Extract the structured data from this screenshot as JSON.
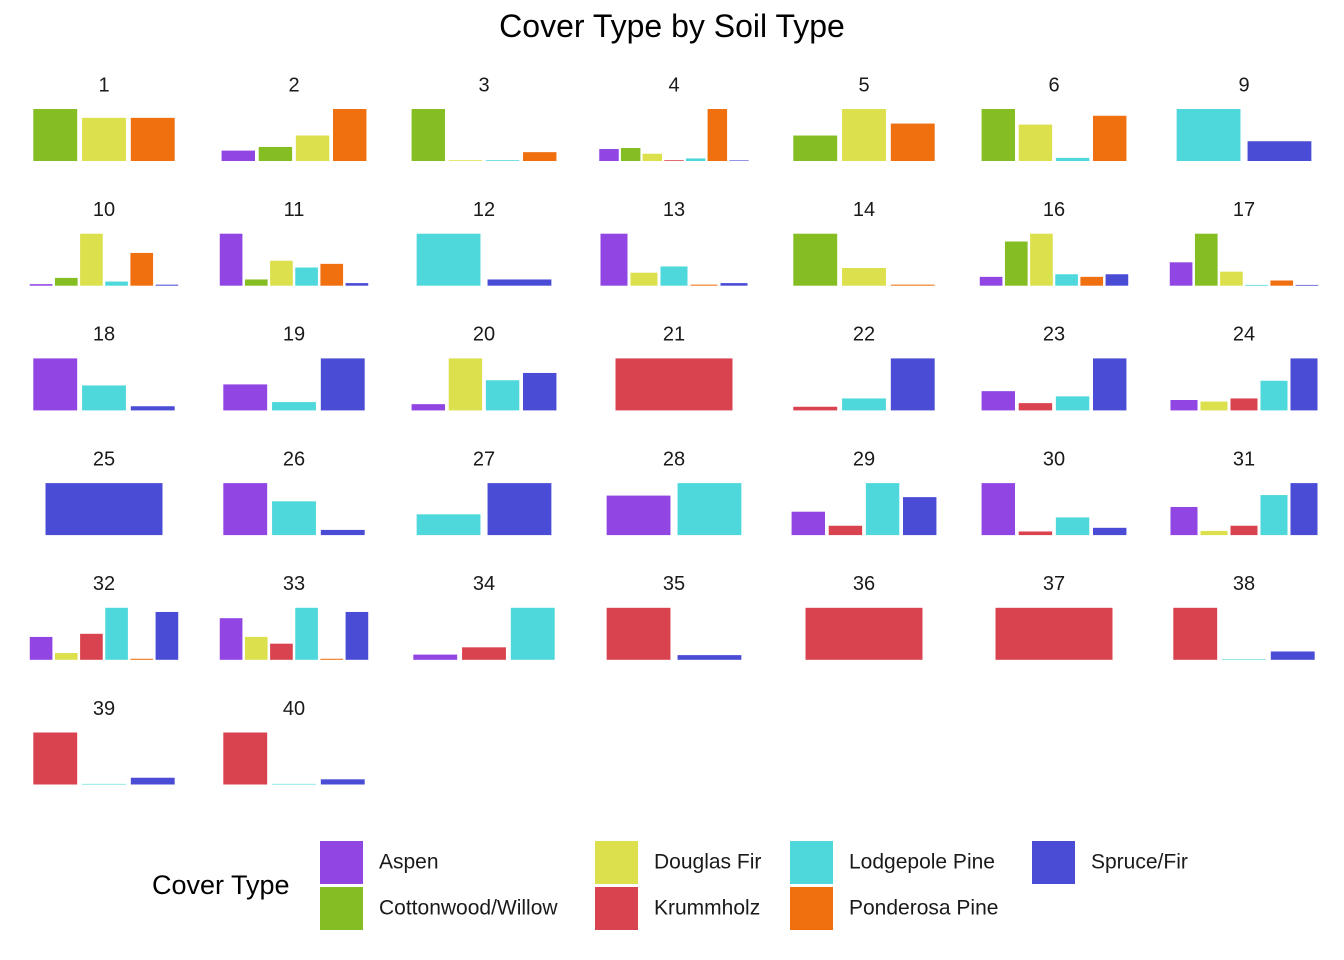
{
  "chart_data": {
    "type": "bar",
    "title": "Cover Type by Soil Type",
    "xlabel": "",
    "ylabel": "",
    "legend": {
      "title": "Cover Type",
      "placement": "bottom",
      "entries": [
        "Aspen",
        "Cottonwood/Willow",
        "Douglas Fir",
        "Krummholz",
        "Lodgepole Pine",
        "Ponderosa Pine",
        "Spruce/Fir"
      ]
    },
    "colors": {
      "Aspen": "#9146e3",
      "Cottonwood/Willow": "#84be23",
      "Douglas Fir": "#dce04c",
      "Krummholz": "#d9434f",
      "Lodgepole Pine": "#4fd8db",
      "Ponderosa Pine": "#f07010",
      "Spruce/Fir": "#4b4cd6"
    },
    "note": "Each facet is a soil type; bar heights are relative to the largest cover type within that facet (free y scale, values 0-1).",
    "facets": [
      {
        "label": "1",
        "bars": [
          [
            "Cottonwood/Willow",
            1.0
          ],
          [
            "Douglas Fir",
            0.83
          ],
          [
            "Ponderosa Pine",
            0.83
          ]
        ]
      },
      {
        "label": "2",
        "bars": [
          [
            "Aspen",
            0.2
          ],
          [
            "Cottonwood/Willow",
            0.27
          ],
          [
            "Douglas Fir",
            0.49
          ],
          [
            "Ponderosa Pine",
            1.0
          ]
        ]
      },
      {
        "label": "3",
        "bars": [
          [
            "Cottonwood/Willow",
            1.0
          ],
          [
            "Douglas Fir",
            0.015
          ],
          [
            "Lodgepole Pine",
            0.015
          ],
          [
            "Ponderosa Pine",
            0.17
          ]
        ]
      },
      {
        "label": "4",
        "bars": [
          [
            "Aspen",
            0.23
          ],
          [
            "Cottonwood/Willow",
            0.25
          ],
          [
            "Douglas Fir",
            0.14
          ],
          [
            "Krummholz",
            0.015
          ],
          [
            "Lodgepole Pine",
            0.05
          ],
          [
            "Ponderosa Pine",
            1.0
          ],
          [
            "Spruce/Fir",
            0.01
          ]
        ]
      },
      {
        "label": "5",
        "bars": [
          [
            "Cottonwood/Willow",
            0.49
          ],
          [
            "Douglas Fir",
            1.0
          ],
          [
            "Ponderosa Pine",
            0.72
          ]
        ]
      },
      {
        "label": "6",
        "bars": [
          [
            "Cottonwood/Willow",
            1.0
          ],
          [
            "Douglas Fir",
            0.7
          ],
          [
            "Lodgepole Pine",
            0.06
          ],
          [
            "Ponderosa Pine",
            0.87
          ]
        ]
      },
      {
        "label": "9",
        "bars": [
          [
            "Lodgepole Pine",
            1.0
          ],
          [
            "Spruce/Fir",
            0.38
          ]
        ]
      },
      {
        "label": "10",
        "bars": [
          [
            "Aspen",
            0.03
          ],
          [
            "Cottonwood/Willow",
            0.15
          ],
          [
            "Douglas Fir",
            1.0
          ],
          [
            "Lodgepole Pine",
            0.08
          ],
          [
            "Ponderosa Pine",
            0.63
          ],
          [
            "Spruce/Fir",
            0.02
          ]
        ]
      },
      {
        "label": "11",
        "bars": [
          [
            "Aspen",
            1.0
          ],
          [
            "Cottonwood/Willow",
            0.12
          ],
          [
            "Douglas Fir",
            0.48
          ],
          [
            "Lodgepole Pine",
            0.35
          ],
          [
            "Ponderosa Pine",
            0.42
          ],
          [
            "Spruce/Fir",
            0.05
          ]
        ]
      },
      {
        "label": "12",
        "bars": [
          [
            "Lodgepole Pine",
            1.0
          ],
          [
            "Spruce/Fir",
            0.12
          ]
        ]
      },
      {
        "label": "13",
        "bars": [
          [
            "Aspen",
            1.0
          ],
          [
            "Douglas Fir",
            0.25
          ],
          [
            "Lodgepole Pine",
            0.37
          ],
          [
            "Ponderosa Pine",
            0.02
          ],
          [
            "Spruce/Fir",
            0.05
          ]
        ]
      },
      {
        "label": "14",
        "bars": [
          [
            "Cottonwood/Willow",
            1.0
          ],
          [
            "Douglas Fir",
            0.34
          ],
          [
            "Ponderosa Pine",
            0.02
          ]
        ]
      },
      {
        "label": "16",
        "bars": [
          [
            "Aspen",
            0.17
          ],
          [
            "Cottonwood/Willow",
            0.85
          ],
          [
            "Douglas Fir",
            1.0
          ],
          [
            "Lodgepole Pine",
            0.22
          ],
          [
            "Ponderosa Pine",
            0.17
          ],
          [
            "Spruce/Fir",
            0.22
          ]
        ]
      },
      {
        "label": "17",
        "bars": [
          [
            "Aspen",
            0.45
          ],
          [
            "Cottonwood/Willow",
            1.0
          ],
          [
            "Douglas Fir",
            0.27
          ],
          [
            "Lodgepole Pine",
            0.015
          ],
          [
            "Ponderosa Pine",
            0.1
          ],
          [
            "Spruce/Fir",
            0.015
          ]
        ]
      },
      {
        "label": "18",
        "bars": [
          [
            "Aspen",
            1.0
          ],
          [
            "Lodgepole Pine",
            0.48
          ],
          [
            "Spruce/Fir",
            0.08
          ]
        ]
      },
      {
        "label": "19",
        "bars": [
          [
            "Aspen",
            0.5
          ],
          [
            "Lodgepole Pine",
            0.16
          ],
          [
            "Spruce/Fir",
            1.0
          ]
        ]
      },
      {
        "label": "20",
        "bars": [
          [
            "Aspen",
            0.12
          ],
          [
            "Douglas Fir",
            1.0
          ],
          [
            "Lodgepole Pine",
            0.58
          ],
          [
            "Spruce/Fir",
            0.72
          ]
        ]
      },
      {
        "label": "21",
        "bars": [
          [
            "Krummholz",
            1.0
          ]
        ]
      },
      {
        "label": "22",
        "bars": [
          [
            "Krummholz",
            0.07
          ],
          [
            "Lodgepole Pine",
            0.23
          ],
          [
            "Spruce/Fir",
            1.0
          ]
        ]
      },
      {
        "label": "23",
        "bars": [
          [
            "Aspen",
            0.37
          ],
          [
            "Krummholz",
            0.14
          ],
          [
            "Lodgepole Pine",
            0.27
          ],
          [
            "Spruce/Fir",
            1.0
          ]
        ]
      },
      {
        "label": "24",
        "bars": [
          [
            "Aspen",
            0.2
          ],
          [
            "Douglas Fir",
            0.17
          ],
          [
            "Krummholz",
            0.23
          ],
          [
            "Lodgepole Pine",
            0.57
          ],
          [
            "Spruce/Fir",
            1.0
          ]
        ]
      },
      {
        "label": "25",
        "bars": [
          [
            "Spruce/Fir",
            1.0
          ]
        ]
      },
      {
        "label": "26",
        "bars": [
          [
            "Aspen",
            1.0
          ],
          [
            "Lodgepole Pine",
            0.65
          ],
          [
            "Spruce/Fir",
            0.1
          ]
        ]
      },
      {
        "label": "27",
        "bars": [
          [
            "Lodgepole Pine",
            0.4
          ],
          [
            "Spruce/Fir",
            1.0
          ]
        ]
      },
      {
        "label": "28",
        "bars": [
          [
            "Aspen",
            0.76
          ],
          [
            "Lodgepole Pine",
            1.0
          ]
        ]
      },
      {
        "label": "29",
        "bars": [
          [
            "Aspen",
            0.45
          ],
          [
            "Krummholz",
            0.18
          ],
          [
            "Lodgepole Pine",
            1.0
          ],
          [
            "Spruce/Fir",
            0.73
          ]
        ]
      },
      {
        "label": "30",
        "bars": [
          [
            "Aspen",
            1.0
          ],
          [
            "Krummholz",
            0.07
          ],
          [
            "Lodgepole Pine",
            0.34
          ],
          [
            "Spruce/Fir",
            0.14
          ]
        ]
      },
      {
        "label": "31",
        "bars": [
          [
            "Aspen",
            0.54
          ],
          [
            "Douglas Fir",
            0.08
          ],
          [
            "Krummholz",
            0.18
          ],
          [
            "Lodgepole Pine",
            0.77
          ],
          [
            "Spruce/Fir",
            1.0
          ]
        ]
      },
      {
        "label": "32",
        "bars": [
          [
            "Aspen",
            0.44
          ],
          [
            "Douglas Fir",
            0.13
          ],
          [
            "Krummholz",
            0.5
          ],
          [
            "Lodgepole Pine",
            1.0
          ],
          [
            "Ponderosa Pine",
            0.02
          ],
          [
            "Spruce/Fir",
            0.92
          ]
        ]
      },
      {
        "label": "33",
        "bars": [
          [
            "Aspen",
            0.8
          ],
          [
            "Douglas Fir",
            0.44
          ],
          [
            "Krummholz",
            0.31
          ],
          [
            "Lodgepole Pine",
            1.0
          ],
          [
            "Ponderosa Pine",
            0.02
          ],
          [
            "Spruce/Fir",
            0.92
          ]
        ]
      },
      {
        "label": "34",
        "bars": [
          [
            "Aspen",
            0.1
          ],
          [
            "Krummholz",
            0.24
          ],
          [
            "Lodgepole Pine",
            1.0
          ]
        ]
      },
      {
        "label": "35",
        "bars": [
          [
            "Krummholz",
            1.0
          ],
          [
            "Spruce/Fir",
            0.09
          ]
        ]
      },
      {
        "label": "36",
        "bars": [
          [
            "Krummholz",
            1.0
          ]
        ]
      },
      {
        "label": "37",
        "bars": [
          [
            "Krummholz",
            1.0
          ]
        ]
      },
      {
        "label": "38",
        "bars": [
          [
            "Krummholz",
            1.0
          ],
          [
            "Lodgepole Pine",
            0.01
          ],
          [
            "Spruce/Fir",
            0.16
          ]
        ]
      },
      {
        "label": "39",
        "bars": [
          [
            "Krummholz",
            1.0
          ],
          [
            "Lodgepole Pine",
            0.01
          ],
          [
            "Spruce/Fir",
            0.13
          ]
        ]
      },
      {
        "label": "40",
        "bars": [
          [
            "Krummholz",
            1.0
          ],
          [
            "Lodgepole Pine",
            0.01
          ],
          [
            "Spruce/Fir",
            0.1
          ]
        ]
      }
    ]
  }
}
